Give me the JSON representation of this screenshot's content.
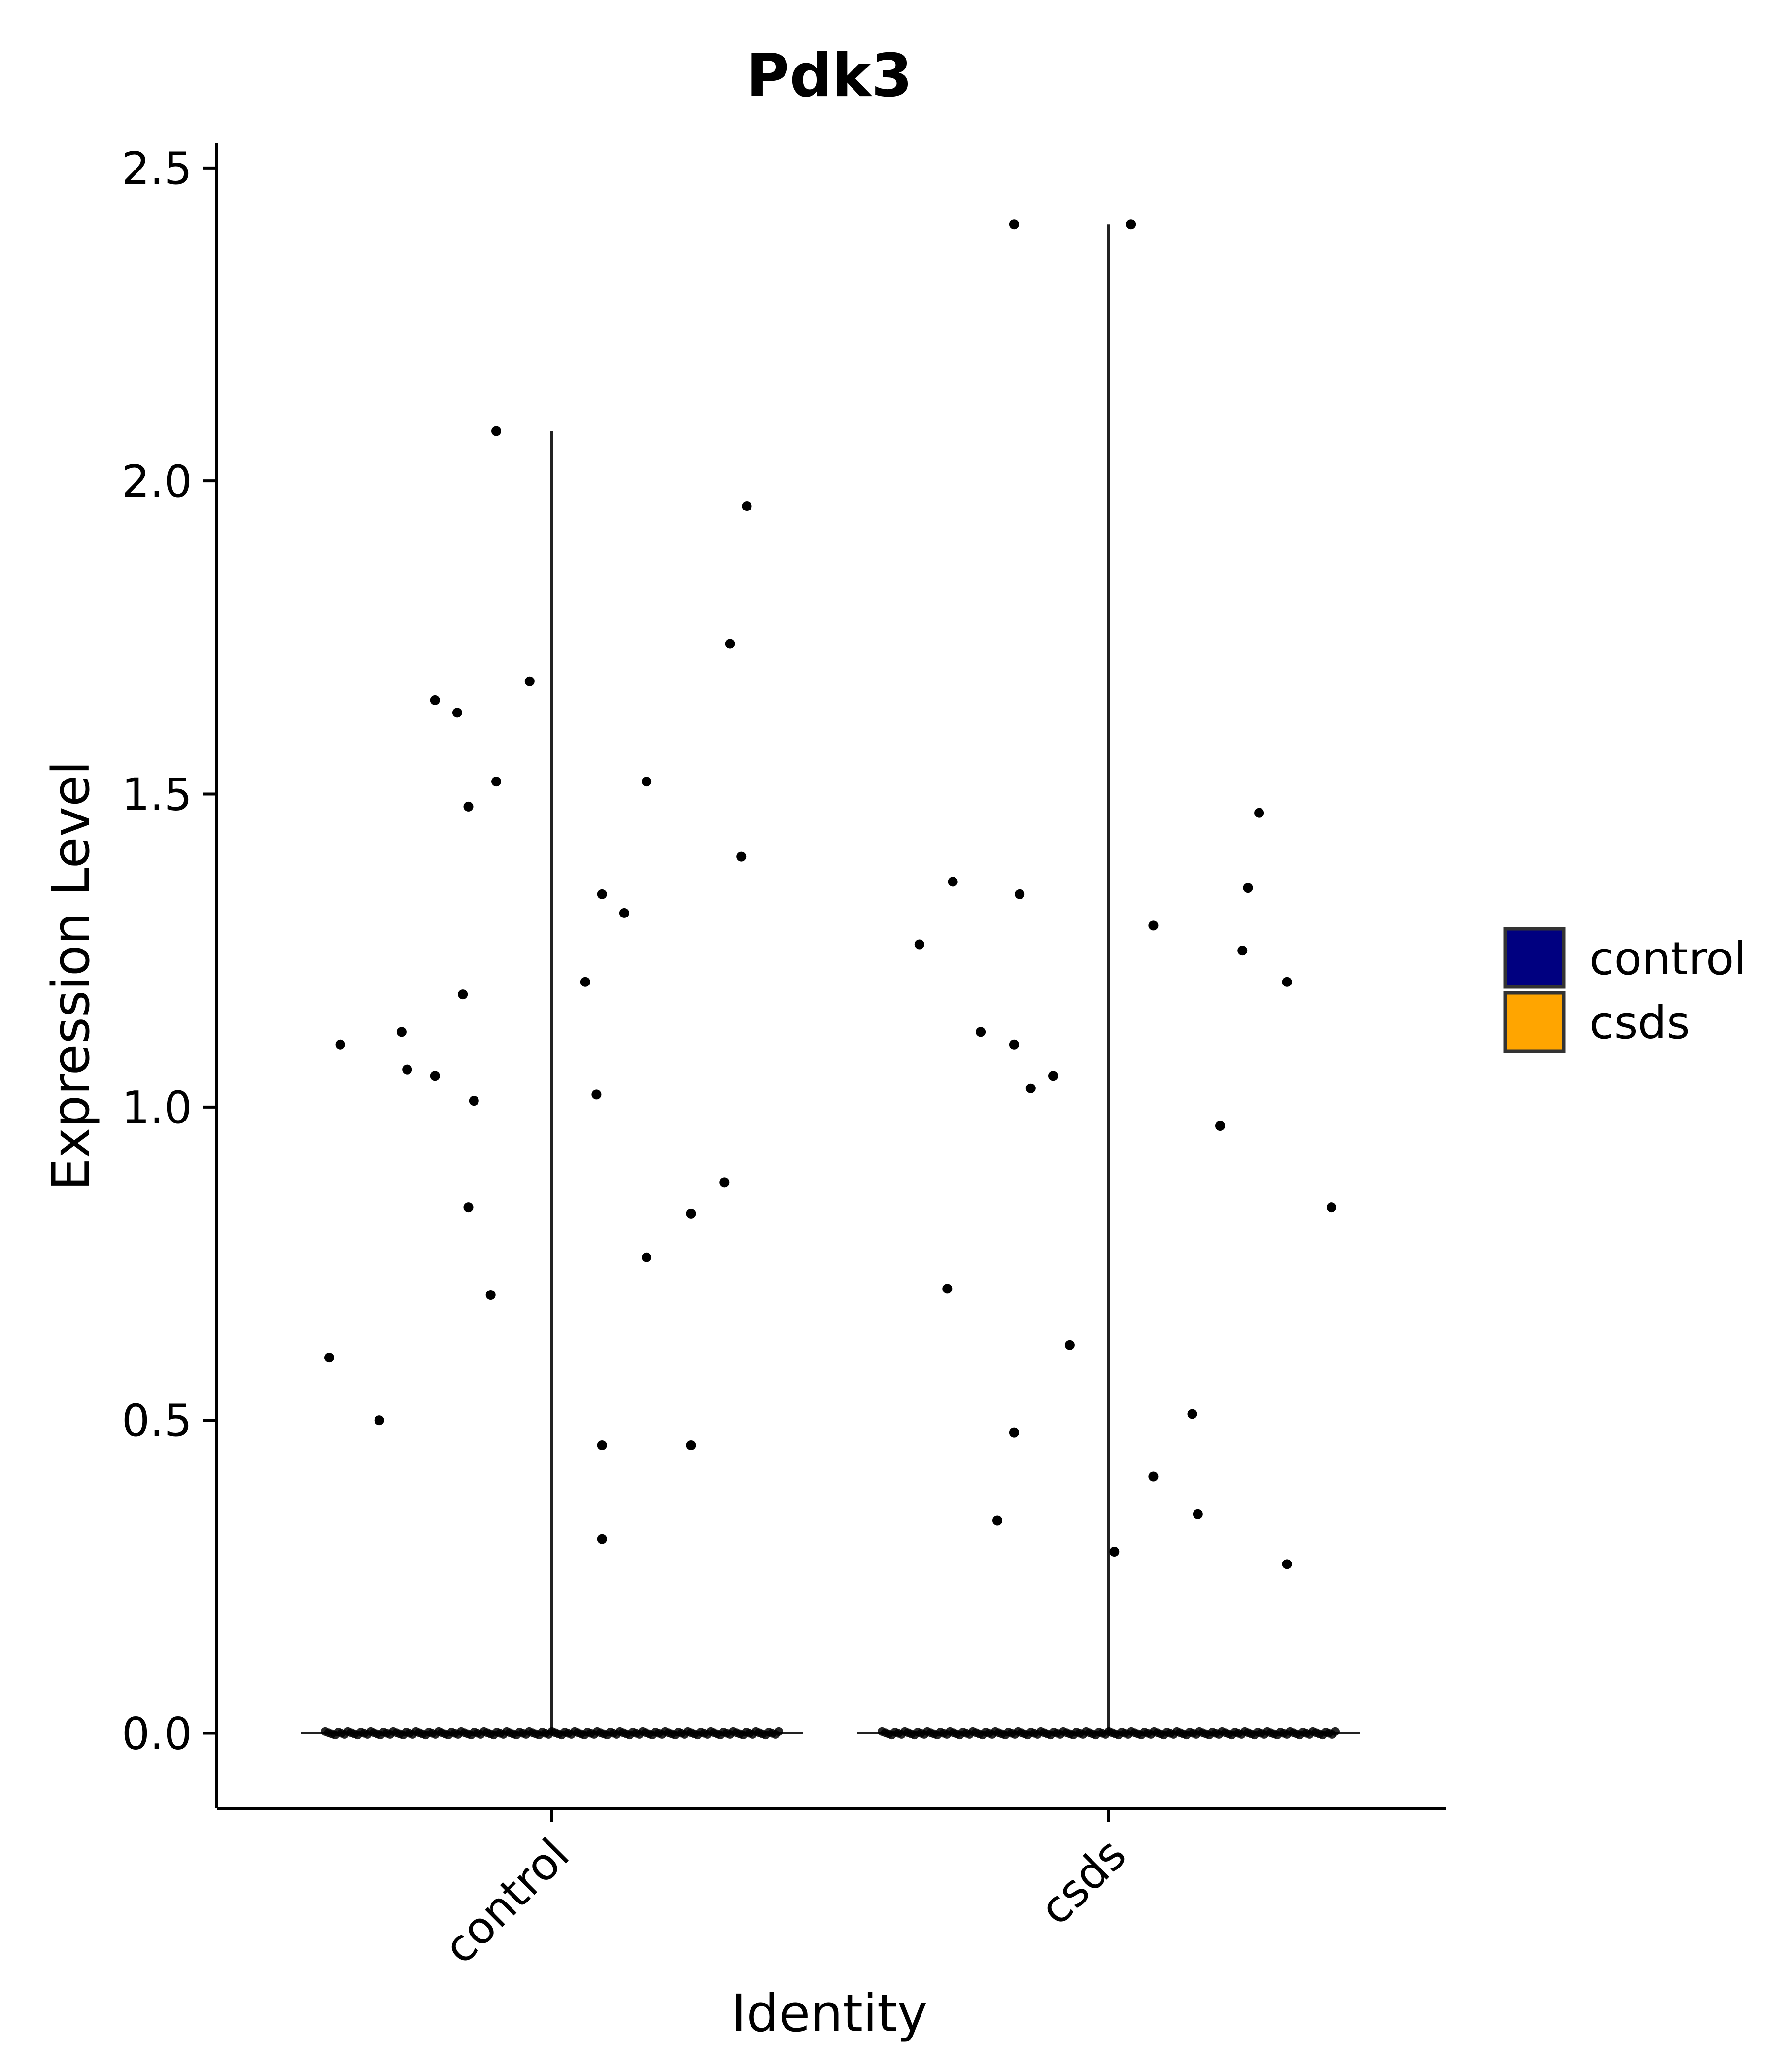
{
  "chart_data": {
    "type": "violin",
    "title": "Pdk3",
    "xlabel": "Identity",
    "ylabel": "Expression Level",
    "ylim": [
      -0.12,
      2.54
    ],
    "yticks": [
      "0.0",
      "0.5",
      "1.0",
      "1.5",
      "2.0",
      "2.5"
    ],
    "ytick_values": [
      0.0,
      0.5,
      1.0,
      1.5,
      2.0,
      2.5
    ],
    "categories": [
      "control",
      "csds"
    ],
    "legend": {
      "position": "right",
      "entries": [
        {
          "label": "control",
          "color": "#000080"
        },
        {
          "label": "csds",
          "color": "#FFA500"
        }
      ]
    },
    "violins": [
      {
        "category": "control",
        "max": 2.08,
        "zero_cells": "majority at 0.0"
      },
      {
        "category": "csds",
        "max": 2.41,
        "zero_cells": "majority at 0.0"
      }
    ],
    "points": {
      "control": [
        {
          "offset": -0.4,
          "y": 0.6
        },
        {
          "offset": -0.38,
          "y": 1.1
        },
        {
          "offset": -0.31,
          "y": 0.5
        },
        {
          "offset": -0.27,
          "y": 1.12
        },
        {
          "offset": -0.26,
          "y": 1.06
        },
        {
          "offset": -0.21,
          "y": 1.65
        },
        {
          "offset": -0.21,
          "y": 1.05
        },
        {
          "offset": -0.17,
          "y": 1.63
        },
        {
          "offset": -0.16,
          "y": 1.18
        },
        {
          "offset": -0.15,
          "y": 1.48
        },
        {
          "offset": -0.15,
          "y": 0.84
        },
        {
          "offset": -0.14,
          "y": 1.01
        },
        {
          "offset": -0.11,
          "y": 0.7
        },
        {
          "offset": -0.1,
          "y": 2.08
        },
        {
          "offset": -0.1,
          "y": 1.52
        },
        {
          "offset": -0.04,
          "y": 1.68
        },
        {
          "offset": 0.06,
          "y": 1.2
        },
        {
          "offset": 0.08,
          "y": 1.02
        },
        {
          "offset": 0.09,
          "y": 1.34
        },
        {
          "offset": 0.09,
          "y": 0.46
        },
        {
          "offset": 0.09,
          "y": 0.31
        },
        {
          "offset": 0.13,
          "y": 1.31
        },
        {
          "offset": 0.17,
          "y": 1.52
        },
        {
          "offset": 0.17,
          "y": 0.76
        },
        {
          "offset": 0.25,
          "y": 0.46
        },
        {
          "offset": 0.25,
          "y": 0.83
        },
        {
          "offset": 0.31,
          "y": 0.88
        },
        {
          "offset": 0.32,
          "y": 1.74
        },
        {
          "offset": 0.34,
          "y": 1.4
        },
        {
          "offset": 0.35,
          "y": 1.96
        }
      ],
      "csds": [
        {
          "offset": -0.34,
          "y": 1.26
        },
        {
          "offset": -0.29,
          "y": 0.71
        },
        {
          "offset": -0.28,
          "y": 1.36
        },
        {
          "offset": -0.23,
          "y": 1.12
        },
        {
          "offset": -0.2,
          "y": 0.34
        },
        {
          "offset": -0.17,
          "y": 2.41
        },
        {
          "offset": -0.17,
          "y": 0.48
        },
        {
          "offset": -0.17,
          "y": 1.1
        },
        {
          "offset": -0.16,
          "y": 1.34
        },
        {
          "offset": -0.14,
          "y": 1.03
        },
        {
          "offset": -0.1,
          "y": 1.05
        },
        {
          "offset": -0.07,
          "y": 0.62
        },
        {
          "offset": 0.01,
          "y": 0.29
        },
        {
          "offset": 0.04,
          "y": 2.41
        },
        {
          "offset": 0.08,
          "y": 0.41
        },
        {
          "offset": 0.08,
          "y": 1.29
        },
        {
          "offset": 0.15,
          "y": 0.51
        },
        {
          "offset": 0.16,
          "y": 0.35
        },
        {
          "offset": 0.2,
          "y": 0.97
        },
        {
          "offset": 0.24,
          "y": 1.25
        },
        {
          "offset": 0.25,
          "y": 1.35
        },
        {
          "offset": 0.27,
          "y": 1.47
        },
        {
          "offset": 0.32,
          "y": 1.2
        },
        {
          "offset": 0.32,
          "y": 0.27
        },
        {
          "offset": 0.4,
          "y": 0.84
        }
      ]
    }
  }
}
